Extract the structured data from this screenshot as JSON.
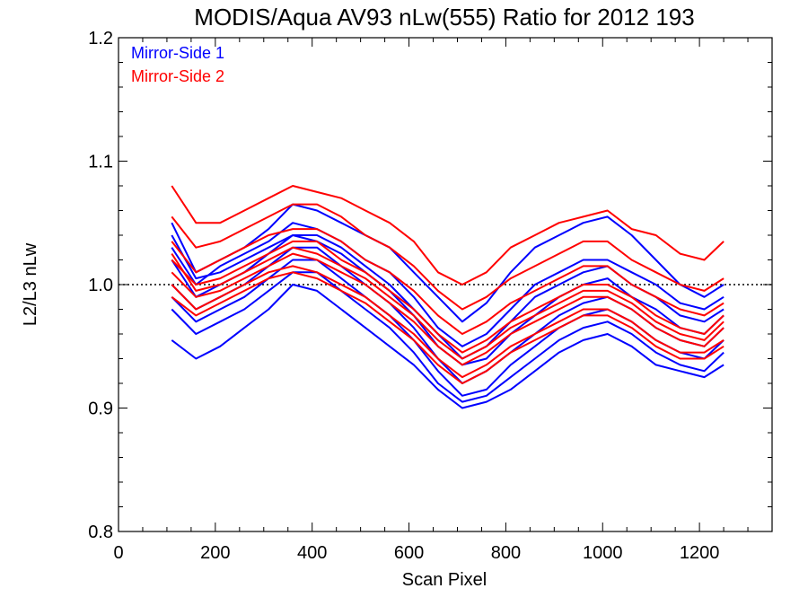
{
  "chart_data": {
    "type": "line",
    "title": "MODIS/Aqua AV93 nLw(555) Ratio for 2012 193",
    "xlabel": "Scan Pixel",
    "ylabel": "L2/L3 nLw",
    "xlim": [
      0,
      1350
    ],
    "ylim": [
      0.8,
      1.2
    ],
    "x_ticks": [
      0,
      200,
      400,
      600,
      800,
      1000,
      1200
    ],
    "x_tick_labels": [
      "0",
      "200",
      "400",
      "600",
      "800",
      "1000",
      "1200"
    ],
    "y_ticks": [
      0.8,
      0.9,
      1.0,
      1.1,
      1.2
    ],
    "y_tick_labels": [
      "0.8",
      "0.9",
      "1.0",
      "1.1",
      "1.2"
    ],
    "reference_line": {
      "y": 1.0,
      "style": "dotted",
      "color": "#000000"
    },
    "legend": {
      "position": "top-left",
      "entries": [
        {
          "label": "Mirror-Side 1",
          "color": "#0000ff"
        },
        {
          "label": "Mirror-Side 2",
          "color": "#ff0000"
        }
      ]
    },
    "x": [
      110,
      160,
      210,
      260,
      310,
      360,
      410,
      460,
      510,
      560,
      610,
      660,
      710,
      760,
      810,
      860,
      910,
      960,
      1010,
      1060,
      1110,
      1160,
      1210,
      1250
    ],
    "series": [
      {
        "group": "Mirror-Side 1",
        "color": "#0000ff",
        "values": [
          1.05,
          1.01,
          1.02,
          1.03,
          1.045,
          1.065,
          1.06,
          1.05,
          1.04,
          1.03,
          1.01,
          0.99,
          0.97,
          0.985,
          1.01,
          1.03,
          1.04,
          1.05,
          1.055,
          1.04,
          1.02,
          1.0,
          0.99,
          1.0
        ]
      },
      {
        "group": "Mirror-Side 1",
        "color": "#0000ff",
        "values": [
          1.03,
          1.0,
          1.015,
          1.025,
          1.035,
          1.05,
          1.045,
          1.035,
          1.02,
          1.01,
          0.99,
          0.965,
          0.95,
          0.96,
          0.98,
          1.0,
          1.01,
          1.02,
          1.02,
          1.01,
          1.0,
          0.985,
          0.98,
          0.99
        ]
      },
      {
        "group": "Mirror-Side 1",
        "color": "#0000ff",
        "values": [
          1.02,
          0.99,
          1.0,
          1.01,
          1.025,
          1.04,
          1.035,
          1.025,
          1.01,
          0.995,
          0.975,
          0.95,
          0.935,
          0.94,
          0.96,
          0.975,
          0.99,
          1.0,
          1.005,
          0.99,
          0.98,
          0.965,
          0.96,
          0.975
        ]
      },
      {
        "group": "Mirror-Side 1",
        "color": "#0000ff",
        "values": [
          1.0,
          0.98,
          0.99,
          1.0,
          1.015,
          1.03,
          1.03,
          1.015,
          1.0,
          0.985,
          0.965,
          0.94,
          0.92,
          0.93,
          0.945,
          0.96,
          0.975,
          0.985,
          0.99,
          0.98,
          0.965,
          0.955,
          0.95,
          0.965
        ]
      },
      {
        "group": "Mirror-Side 1",
        "color": "#0000ff",
        "values": [
          0.99,
          0.97,
          0.98,
          0.99,
          1.005,
          1.02,
          1.02,
          1.005,
          0.99,
          0.975,
          0.955,
          0.93,
          0.91,
          0.915,
          0.935,
          0.95,
          0.965,
          0.975,
          0.98,
          0.97,
          0.955,
          0.945,
          0.94,
          0.955
        ]
      },
      {
        "group": "Mirror-Side 1",
        "color": "#0000ff",
        "values": [
          0.98,
          0.96,
          0.97,
          0.98,
          0.995,
          1.01,
          1.01,
          0.995,
          0.98,
          0.965,
          0.945,
          0.92,
          0.905,
          0.91,
          0.925,
          0.94,
          0.955,
          0.965,
          0.97,
          0.96,
          0.945,
          0.935,
          0.93,
          0.945
        ]
      },
      {
        "group": "Mirror-Side 1",
        "color": "#0000ff",
        "values": [
          0.955,
          0.94,
          0.95,
          0.965,
          0.98,
          1.0,
          0.995,
          0.98,
          0.965,
          0.95,
          0.935,
          0.915,
          0.9,
          0.905,
          0.915,
          0.93,
          0.945,
          0.955,
          0.96,
          0.95,
          0.935,
          0.93,
          0.925,
          0.935
        ]
      },
      {
        "group": "Mirror-Side 1",
        "color": "#0000ff",
        "values": [
          1.04,
          1.005,
          1.01,
          1.02,
          1.03,
          1.04,
          1.04,
          1.03,
          1.015,
          1.0,
          0.98,
          0.96,
          0.94,
          0.95,
          0.97,
          0.99,
          1.0,
          1.01,
          1.015,
          1.0,
          0.99,
          0.975,
          0.97,
          0.98
        ]
      },
      {
        "group": "Mirror-Side 2",
        "color": "#ff0000",
        "values": [
          1.08,
          1.05,
          1.05,
          1.06,
          1.07,
          1.08,
          1.075,
          1.07,
          1.06,
          1.05,
          1.035,
          1.01,
          1.0,
          1.01,
          1.03,
          1.04,
          1.05,
          1.055,
          1.06,
          1.045,
          1.04,
          1.025,
          1.02,
          1.035
        ]
      },
      {
        "group": "Mirror-Side 2",
        "color": "#ff0000",
        "values": [
          1.055,
          1.03,
          1.035,
          1.045,
          1.055,
          1.065,
          1.065,
          1.055,
          1.04,
          1.03,
          1.015,
          0.995,
          0.98,
          0.99,
          1.005,
          1.015,
          1.025,
          1.035,
          1.035,
          1.02,
          1.01,
          1.0,
          0.995,
          1.005
        ]
      },
      {
        "group": "Mirror-Side 2",
        "color": "#ff0000",
        "values": [
          1.035,
          1.01,
          1.02,
          1.03,
          1.04,
          1.045,
          1.045,
          1.035,
          1.02,
          1.01,
          0.995,
          0.975,
          0.96,
          0.97,
          0.985,
          0.995,
          1.005,
          1.015,
          1.015,
          1.0,
          0.99,
          0.98,
          0.975,
          0.985
        ]
      },
      {
        "group": "Mirror-Side 2",
        "color": "#ff0000",
        "values": [
          1.02,
          1.0,
          1.005,
          1.015,
          1.025,
          1.035,
          1.035,
          1.02,
          1.01,
          0.995,
          0.98,
          0.96,
          0.945,
          0.955,
          0.97,
          0.98,
          0.99,
          1.0,
          1.0,
          0.99,
          0.975,
          0.965,
          0.96,
          0.975
        ]
      },
      {
        "group": "Mirror-Side 2",
        "color": "#ff0000",
        "values": [
          1.01,
          0.99,
          0.995,
          1.005,
          1.015,
          1.025,
          1.02,
          1.01,
          1.0,
          0.985,
          0.97,
          0.95,
          0.935,
          0.945,
          0.96,
          0.97,
          0.98,
          0.99,
          0.99,
          0.98,
          0.965,
          0.955,
          0.95,
          0.965
        ]
      },
      {
        "group": "Mirror-Side 2",
        "color": "#ff0000",
        "values": [
          1.0,
          0.98,
          0.99,
          1.0,
          1.01,
          1.015,
          1.01,
          1.0,
          0.99,
          0.975,
          0.96,
          0.94,
          0.925,
          0.935,
          0.95,
          0.96,
          0.97,
          0.98,
          0.98,
          0.97,
          0.955,
          0.945,
          0.945,
          0.955
        ]
      },
      {
        "group": "Mirror-Side 2",
        "color": "#ff0000",
        "values": [
          1.025,
          0.995,
          1.0,
          1.01,
          1.02,
          1.03,
          1.025,
          1.015,
          1.005,
          0.99,
          0.975,
          0.955,
          0.94,
          0.95,
          0.965,
          0.975,
          0.985,
          0.995,
          0.995,
          0.985,
          0.97,
          0.96,
          0.955,
          0.97
        ]
      },
      {
        "group": "Mirror-Side 2",
        "color": "#ff0000",
        "values": [
          0.99,
          0.975,
          0.985,
          0.995,
          1.005,
          1.01,
          1.005,
          0.995,
          0.985,
          0.97,
          0.955,
          0.935,
          0.92,
          0.93,
          0.945,
          0.955,
          0.965,
          0.975,
          0.975,
          0.965,
          0.95,
          0.94,
          0.94,
          0.95
        ]
      }
    ]
  }
}
